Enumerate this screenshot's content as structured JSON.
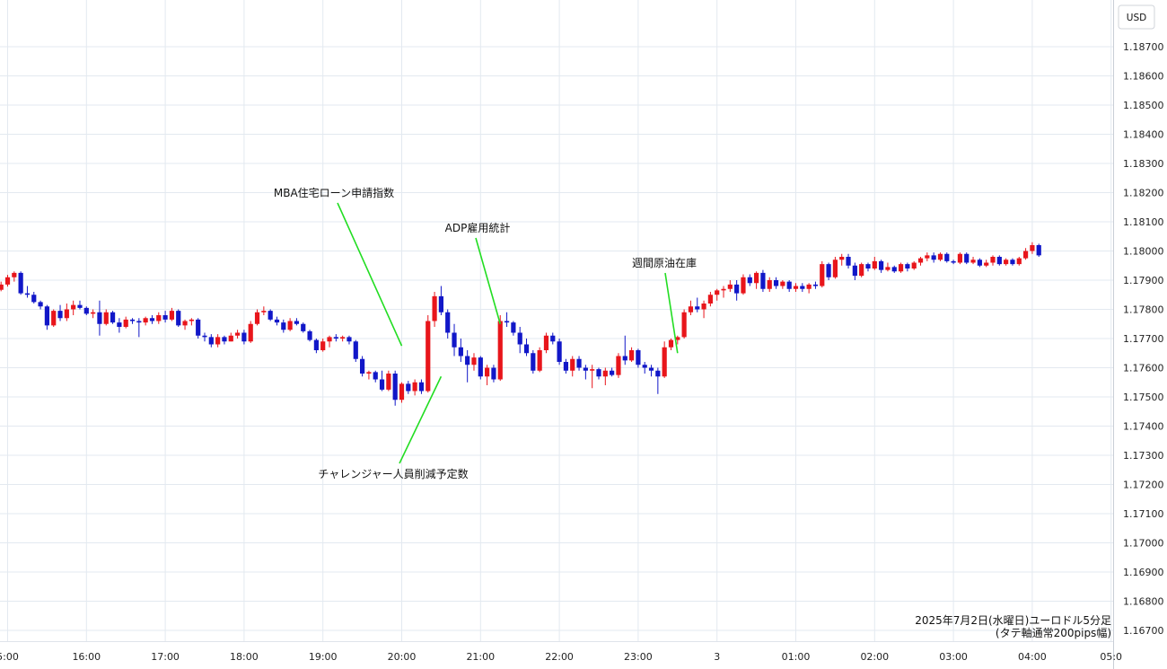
{
  "chart_data": {
    "type": "candlestick",
    "currency_label": "USD",
    "caption_line1": "2025年7月2日(水曜日)ユーロドル5分足",
    "caption_line2": "(タテ軸通常200pips幅)",
    "y_ticks": [
      "1.18700",
      "1.18600",
      "1.18500",
      "1.18400",
      "1.18300",
      "1.18200",
      "1.18100",
      "1.18000",
      "1.17900",
      "1.17800",
      "1.17700",
      "1.17600",
      "1.17500",
      "1.17400",
      "1.17300",
      "1.17200",
      "1.17100",
      "1.17000",
      "1.16900",
      "1.16800",
      "1.16700"
    ],
    "ylim": [
      1.1667,
      1.1877
    ],
    "x_ticks": [
      "5:00",
      "16:00",
      "17:00",
      "18:00",
      "19:00",
      "20:00",
      "21:00",
      "22:00",
      "23:00",
      "3",
      "01:00",
      "02:00",
      "03:00",
      "04:00",
      "05:0"
    ],
    "start_time": "14:55",
    "bar_minutes": 5,
    "colors": {
      "up": "#e8151b",
      "down": "#1117c8",
      "grid": "#e3e9f0",
      "annotation_line": "#22dd22"
    },
    "annotations": [
      {
        "label": "MBA住宅ローン申請指数",
        "time": "20:00",
        "price": 1.17675
      },
      {
        "label": "ADP雇用統計",
        "time": "21:15",
        "price": 1.1775
      },
      {
        "label": "週間原油在庫",
        "time": "23:30",
        "price": 1.1765
      },
      {
        "label": "チャレンジャー人員削減予定数",
        "time": "20:30",
        "price": 1.1757
      }
    ],
    "ohlc": [
      [
        1.17867,
        1.17895,
        1.17862,
        1.17885
      ],
      [
        1.17885,
        1.17918,
        1.17878,
        1.1791
      ],
      [
        1.1791,
        1.1793,
        1.17895,
        1.17925
      ],
      [
        1.17925,
        1.1793,
        1.1785,
        1.17855
      ],
      [
        1.17855,
        1.1788,
        1.1784,
        1.1785
      ],
      [
        1.1785,
        1.1786,
        1.1782,
        1.17825
      ],
      [
        1.17825,
        1.1783,
        1.178,
        1.1781
      ],
      [
        1.1781,
        1.17815,
        1.1773,
        1.17745
      ],
      [
        1.17745,
        1.178,
        1.1774,
        1.17795
      ],
      [
        1.17795,
        1.17815,
        1.1776,
        1.1777
      ],
      [
        1.1777,
        1.1782,
        1.1776,
        1.178
      ],
      [
        1.178,
        1.1783,
        1.1778,
        1.17815
      ],
      [
        1.17815,
        1.1783,
        1.178,
        1.17805
      ],
      [
        1.17805,
        1.1781,
        1.1778,
        1.17785
      ],
      [
        1.17785,
        1.178,
        1.1777,
        1.1779
      ],
      [
        1.1779,
        1.1783,
        1.1771,
        1.1775
      ],
      [
        1.1775,
        1.178,
        1.17745,
        1.1779
      ],
      [
        1.1779,
        1.17795,
        1.1775,
        1.17755
      ],
      [
        1.17755,
        1.1777,
        1.1772,
        1.1774
      ],
      [
        1.1774,
        1.17775,
        1.17735,
        1.17765
      ],
      [
        1.17765,
        1.1777,
        1.1775,
        1.1776
      ],
      [
        1.1776,
        1.1777,
        1.17705,
        1.17755
      ],
      [
        1.17755,
        1.17775,
        1.17745,
        1.1777
      ],
      [
        1.1777,
        1.1778,
        1.1775,
        1.1776
      ],
      [
        1.1776,
        1.1779,
        1.1775,
        1.1778
      ],
      [
        1.1778,
        1.17795,
        1.17755,
        1.17765
      ],
      [
        1.17765,
        1.17805,
        1.1776,
        1.17795
      ],
      [
        1.17795,
        1.178,
        1.1774,
        1.17745
      ],
      [
        1.17745,
        1.17765,
        1.1773,
        1.1776
      ],
      [
        1.1776,
        1.1777,
        1.17745,
        1.17765
      ],
      [
        1.17765,
        1.1777,
        1.177,
        1.1771
      ],
      [
        1.1771,
        1.1772,
        1.1769,
        1.17705
      ],
      [
        1.17705,
        1.17715,
        1.1767,
        1.1768
      ],
      [
        1.1768,
        1.17715,
        1.1767,
        1.17705
      ],
      [
        1.17705,
        1.1771,
        1.1768,
        1.1769
      ],
      [
        1.1769,
        1.1772,
        1.1769,
        1.1771
      ],
      [
        1.1771,
        1.1773,
        1.177,
        1.1772
      ],
      [
        1.1772,
        1.1773,
        1.1768,
        1.1769
      ],
      [
        1.1769,
        1.1776,
        1.17685,
        1.1775
      ],
      [
        1.1775,
        1.178,
        1.17745,
        1.1779
      ],
      [
        1.1779,
        1.1781,
        1.1778,
        1.17795
      ],
      [
        1.17795,
        1.178,
        1.1776,
        1.17765
      ],
      [
        1.17765,
        1.17775,
        1.17745,
        1.17755
      ],
      [
        1.17755,
        1.17765,
        1.1772,
        1.1773
      ],
      [
        1.1773,
        1.1777,
        1.17725,
        1.1776
      ],
      [
        1.1776,
        1.1777,
        1.17745,
        1.1775
      ],
      [
        1.1775,
        1.17755,
        1.1772,
        1.17725
      ],
      [
        1.17725,
        1.1773,
        1.1769,
        1.17695
      ],
      [
        1.17695,
        1.177,
        1.1765,
        1.1766
      ],
      [
        1.1766,
        1.177,
        1.17655,
        1.1769
      ],
      [
        1.1769,
        1.1771,
        1.1767,
        1.17705
      ],
      [
        1.17705,
        1.17715,
        1.1769,
        1.177
      ],
      [
        1.177,
        1.1771,
        1.1769,
        1.17705
      ],
      [
        1.17705,
        1.1771,
        1.1768,
        1.1769
      ],
      [
        1.1769,
        1.17695,
        1.1762,
        1.1763
      ],
      [
        1.1763,
        1.1764,
        1.1757,
        1.1758
      ],
      [
        1.1758,
        1.1759,
        1.1756,
        1.17585
      ],
      [
        1.17585,
        1.1759,
        1.1755,
        1.1756
      ],
      [
        1.1756,
        1.1759,
        1.1752,
        1.17525
      ],
      [
        1.17525,
        1.1759,
        1.1752,
        1.1758
      ],
      [
        1.1758,
        1.1759,
        1.1747,
        1.1749
      ],
      [
        1.1749,
        1.1755,
        1.1748,
        1.17545
      ],
      [
        1.17545,
        1.17555,
        1.1751,
        1.1752
      ],
      [
        1.1752,
        1.1756,
        1.17505,
        1.1755
      ],
      [
        1.1755,
        1.1756,
        1.1751,
        1.1752
      ],
      [
        1.1752,
        1.1778,
        1.17515,
        1.1776
      ],
      [
        1.1776,
        1.1786,
        1.1774,
        1.17845
      ],
      [
        1.17845,
        1.1788,
        1.1778,
        1.1779
      ],
      [
        1.1779,
        1.178,
        1.177,
        1.1772
      ],
      [
        1.1772,
        1.1775,
        1.1764,
        1.1767
      ],
      [
        1.1767,
        1.177,
        1.1762,
        1.1764
      ],
      [
        1.1764,
        1.1766,
        1.1755,
        1.1761
      ],
      [
        1.1761,
        1.1765,
        1.1759,
        1.17635
      ],
      [
        1.17635,
        1.1764,
        1.1756,
        1.1757
      ],
      [
        1.1757,
        1.1761,
        1.1754,
        1.176
      ],
      [
        1.176,
        1.1761,
        1.1755,
        1.1756
      ],
      [
        1.1756,
        1.1778,
        1.17555,
        1.1776
      ],
      [
        1.1776,
        1.1779,
        1.1774,
        1.17755
      ],
      [
        1.17755,
        1.1776,
        1.1771,
        1.1772
      ],
      [
        1.1772,
        1.1774,
        1.1765,
        1.1768
      ],
      [
        1.1768,
        1.177,
        1.1764,
        1.1765
      ],
      [
        1.1765,
        1.1766,
        1.1758,
        1.1759
      ],
      [
        1.1759,
        1.1767,
        1.17585,
        1.1766
      ],
      [
        1.1766,
        1.1772,
        1.1765,
        1.1771
      ],
      [
        1.1771,
        1.1772,
        1.1768,
        1.1769
      ],
      [
        1.1769,
        1.177,
        1.1761,
        1.1762
      ],
      [
        1.1762,
        1.1763,
        1.1758,
        1.1759
      ],
      [
        1.1759,
        1.1764,
        1.1757,
        1.1763
      ],
      [
        1.1763,
        1.1764,
        1.1759,
        1.176
      ],
      [
        1.176,
        1.1761,
        1.1756,
        1.1759
      ],
      [
        1.1759,
        1.1761,
        1.1753,
        1.17595
      ],
      [
        1.17595,
        1.176,
        1.1756,
        1.1757
      ],
      [
        1.1757,
        1.176,
        1.1754,
        1.1759
      ],
      [
        1.1759,
        1.176,
        1.1757,
        1.17575
      ],
      [
        1.17575,
        1.1765,
        1.17565,
        1.1764
      ],
      [
        1.1764,
        1.1771,
        1.1761,
        1.17625
      ],
      [
        1.17625,
        1.1767,
        1.1762,
        1.1766
      ],
      [
        1.1766,
        1.17665,
        1.176,
        1.1761
      ],
      [
        1.1761,
        1.1762,
        1.1758,
        1.176
      ],
      [
        1.176,
        1.1761,
        1.1757,
        1.1759
      ],
      [
        1.1759,
        1.176,
        1.1751,
        1.1757
      ],
      [
        1.1757,
        1.1769,
        1.17565,
        1.1767
      ],
      [
        1.1767,
        1.177,
        1.1766,
        1.17695
      ],
      [
        1.17695,
        1.1771,
        1.1768,
        1.17705
      ],
      [
        1.17705,
        1.178,
        1.177,
        1.1779
      ],
      [
        1.1779,
        1.1783,
        1.1778,
        1.1781
      ],
      [
        1.1781,
        1.1784,
        1.1779,
        1.178
      ],
      [
        1.178,
        1.1783,
        1.1777,
        1.1782
      ],
      [
        1.1782,
        1.1786,
        1.1781,
        1.1785
      ],
      [
        1.1785,
        1.1787,
        1.1783,
        1.17865
      ],
      [
        1.17865,
        1.1788,
        1.1784,
        1.1787
      ],
      [
        1.1787,
        1.179,
        1.1786,
        1.17885
      ],
      [
        1.17885,
        1.179,
        1.1783,
        1.17855
      ],
      [
        1.17855,
        1.1792,
        1.1785,
        1.1791
      ],
      [
        1.1791,
        1.1792,
        1.1788,
        1.1789
      ],
      [
        1.1789,
        1.1793,
        1.1787,
        1.17925
      ],
      [
        1.17925,
        1.17935,
        1.1786,
        1.1787
      ],
      [
        1.1787,
        1.1791,
        1.1786,
        1.179
      ],
      [
        1.179,
        1.1791,
        1.1787,
        1.1788
      ],
      [
        1.1788,
        1.179,
        1.1787,
        1.17895
      ],
      [
        1.17895,
        1.179,
        1.1786,
        1.1787
      ],
      [
        1.1787,
        1.1789,
        1.1786,
        1.1788
      ],
      [
        1.1788,
        1.1789,
        1.1786,
        1.1787
      ],
      [
        1.1787,
        1.1789,
        1.17855,
        1.17885
      ],
      [
        1.17885,
        1.17895,
        1.1787,
        1.1788
      ],
      [
        1.1788,
        1.17965,
        1.17875,
        1.17955
      ],
      [
        1.17955,
        1.1796,
        1.179,
        1.1791
      ],
      [
        1.1791,
        1.1798,
        1.17905,
        1.1797
      ],
      [
        1.1797,
        1.1799,
        1.1795,
        1.1798
      ],
      [
        1.1798,
        1.1799,
        1.1794,
        1.1795
      ],
      [
        1.1795,
        1.1796,
        1.179,
        1.17915
      ],
      [
        1.17915,
        1.1796,
        1.1791,
        1.17955
      ],
      [
        1.17955,
        1.1796,
        1.1793,
        1.1794
      ],
      [
        1.1794,
        1.1798,
        1.17935,
        1.17965
      ],
      [
        1.17965,
        1.1797,
        1.17925,
        1.17935
      ],
      [
        1.17935,
        1.1796,
        1.1793,
        1.17945
      ],
      [
        1.17945,
        1.1795,
        1.17925,
        1.1793
      ],
      [
        1.1793,
        1.1796,
        1.17925,
        1.17955
      ],
      [
        1.17955,
        1.1796,
        1.1793,
        1.1794
      ],
      [
        1.1794,
        1.17965,
        1.17935,
        1.1796
      ],
      [
        1.1796,
        1.1798,
        1.1795,
        1.17975
      ],
      [
        1.17975,
        1.17995,
        1.17965,
        1.17985
      ],
      [
        1.17985,
        1.17995,
        1.1796,
        1.1797
      ],
      [
        1.1797,
        1.17995,
        1.17965,
        1.1799
      ],
      [
        1.1799,
        1.17995,
        1.1796,
        1.17965
      ],
      [
        1.17965,
        1.1797,
        1.17955,
        1.1796
      ],
      [
        1.1796,
        1.17995,
        1.17955,
        1.1799
      ],
      [
        1.1799,
        1.17995,
        1.17955,
        1.1796
      ],
      [
        1.1796,
        1.1798,
        1.17955,
        1.1797
      ],
      [
        1.1797,
        1.17975,
        1.17945,
        1.1795
      ],
      [
        1.1795,
        1.1797,
        1.17945,
        1.1796
      ],
      [
        1.1796,
        1.17985,
        1.1795,
        1.1798
      ],
      [
        1.1798,
        1.17985,
        1.1795,
        1.17955
      ],
      [
        1.17955,
        1.17975,
        1.1795,
        1.1797
      ],
      [
        1.1797,
        1.17975,
        1.1795,
        1.17955
      ],
      [
        1.17955,
        1.1798,
        1.1795,
        1.17975
      ],
      [
        1.17975,
        1.1801,
        1.1797,
        1.18
      ],
      [
        1.18,
        1.1803,
        1.1799,
        1.1802
      ],
      [
        1.1802,
        1.18025,
        1.1798,
        1.17985
      ]
    ]
  }
}
